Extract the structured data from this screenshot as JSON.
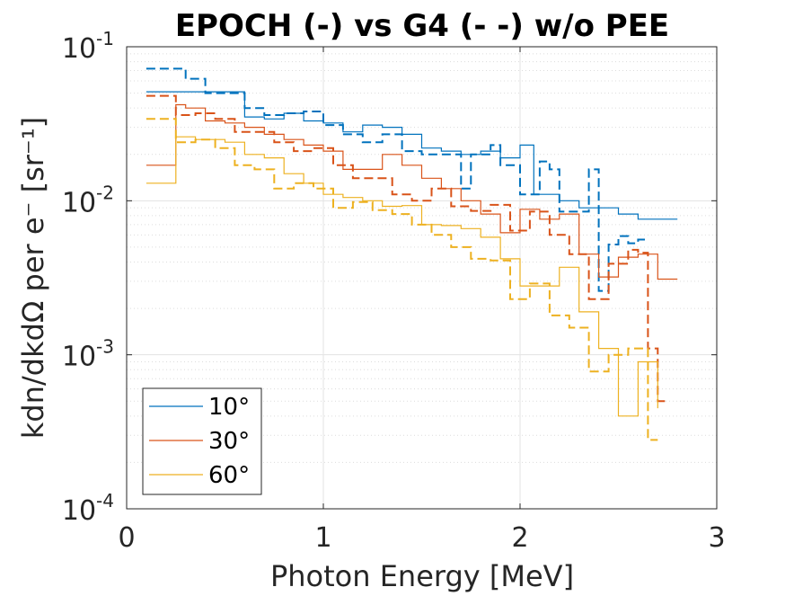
{
  "chart_data": {
    "type": "line",
    "title": "EPOCH (-) vs G4 (- -) w/o PEE",
    "xlabel": "Photon Energy [MeV]",
    "ylabel": "kdn/dkdΩ per e⁻ [sr⁻¹]",
    "xlim": [
      0,
      3
    ],
    "ylim": [
      0.0001,
      0.1
    ],
    "yscale": "log",
    "grid": true,
    "x_ticks": [
      "0",
      "1",
      "2",
      "3"
    ],
    "y_ticks": [
      {
        "base": "10",
        "exp": "-4"
      },
      {
        "base": "10",
        "exp": "-3"
      },
      {
        "base": "10",
        "exp": "-2"
      },
      {
        "base": "10",
        "exp": "-1"
      }
    ],
    "legend_position": "bottom-left",
    "series": [
      {
        "name": "10°",
        "source": "EPOCH",
        "style": "solid",
        "color": "#0072BD",
        "edges": [
          0.1,
          0.6,
          0.7,
          0.8,
          0.9,
          1.0,
          1.1,
          1.2,
          1.3,
          1.4,
          1.5,
          1.6,
          1.7,
          1.8,
          1.9,
          2.0,
          2.07,
          2.2,
          2.3,
          2.4,
          2.5,
          2.6,
          2.7,
          2.8
        ],
        "values": [
          0.051,
          0.035,
          0.034,
          0.037,
          0.033,
          0.032,
          0.028,
          0.031,
          0.03,
          0.027,
          0.022,
          0.021,
          0.02,
          0.021,
          0.019,
          0.023,
          0.011,
          0.01,
          0.009,
          0.009,
          0.0082,
          0.0076,
          0.0076
        ]
      },
      {
        "name": "",
        "source": "G4",
        "style": "dashed",
        "color": "#0072BD",
        "edges": [
          0.1,
          0.3,
          0.4,
          0.6,
          0.7,
          0.8,
          0.9,
          1.0,
          1.1,
          1.2,
          1.3,
          1.4,
          1.5,
          1.6,
          1.7,
          1.75,
          1.85,
          1.9,
          2.0,
          2.1,
          2.15,
          2.2,
          2.3,
          2.35,
          2.4,
          2.45,
          2.5,
          2.55,
          2.6,
          2.65
        ],
        "values": [
          0.072,
          0.062,
          0.05,
          0.04,
          0.036,
          0.037,
          0.038,
          0.031,
          0.027,
          0.024,
          0.027,
          0.021,
          0.02,
          0.02,
          0.012,
          0.02,
          0.023,
          0.017,
          0.011,
          0.018,
          0.016,
          0.0085,
          0.0085,
          0.016,
          0.0026,
          0.0052,
          0.0059,
          0.0053,
          0.0056,
          0.0056
        ]
      },
      {
        "name": "30°",
        "source": "EPOCH",
        "style": "solid",
        "color": "#D95319",
        "edges": [
          0.1,
          0.25,
          0.3,
          0.4,
          0.5,
          0.6,
          0.7,
          0.8,
          0.9,
          1.0,
          1.1,
          1.2,
          1.3,
          1.4,
          1.5,
          1.6,
          1.7,
          1.8,
          1.9,
          2.0,
          2.1,
          2.2,
          2.3,
          2.4,
          2.5,
          2.6,
          2.7,
          2.8
        ],
        "values": [
          0.017,
          0.042,
          0.04,
          0.033,
          0.032,
          0.03,
          0.027,
          0.025,
          0.023,
          0.021,
          0.016,
          0.016,
          0.02,
          0.017,
          0.014,
          0.012,
          0.01,
          0.0082,
          0.0062,
          0.0088,
          0.0076,
          0.0082,
          0.0045,
          0.0032,
          0.0043,
          0.0045,
          0.0031,
          0.0031
        ]
      },
      {
        "name": "",
        "source": "G4",
        "style": "dashed",
        "color": "#D95319",
        "edges": [
          0.1,
          0.25,
          0.35,
          0.45,
          0.55,
          0.65,
          0.75,
          0.85,
          0.95,
          1.05,
          1.15,
          1.25,
          1.35,
          1.45,
          1.55,
          1.65,
          1.75,
          1.85,
          1.95,
          2.05,
          2.15,
          2.25,
          2.35,
          2.45,
          2.55,
          2.6,
          2.65,
          2.7,
          2.75
        ],
        "values": [
          0.048,
          0.036,
          0.037,
          0.034,
          0.028,
          0.028,
          0.024,
          0.021,
          0.022,
          0.017,
          0.014,
          0.014,
          0.011,
          0.01,
          0.012,
          0.0092,
          0.0086,
          0.0094,
          0.0064,
          0.0085,
          0.006,
          0.0045,
          0.0023,
          0.0039,
          0.0048,
          0.0046,
          0.0011,
          0.0005,
          0.0005
        ]
      },
      {
        "name": "60°",
        "source": "EPOCH",
        "style": "solid",
        "color": "#EDB120",
        "edges": [
          0.1,
          0.25,
          0.35,
          0.5,
          0.6,
          0.7,
          0.8,
          0.9,
          1.0,
          1.1,
          1.2,
          1.3,
          1.4,
          1.5,
          1.6,
          1.7,
          1.8,
          1.9,
          2.0,
          2.1,
          2.2,
          2.3,
          2.4,
          2.5,
          2.6,
          2.7
        ],
        "values": [
          0.013,
          0.026,
          0.025,
          0.024,
          0.02,
          0.019,
          0.015,
          0.013,
          0.011,
          0.0105,
          0.01,
          0.0092,
          0.0093,
          0.007,
          0.0069,
          0.0066,
          0.0058,
          0.0042,
          0.0028,
          0.0028,
          0.0037,
          0.0019,
          0.0011,
          0.0004,
          0.0009,
          0.00045
        ]
      },
      {
        "name": "",
        "source": "G4",
        "style": "dashed",
        "color": "#EDB120",
        "edges": [
          0.1,
          0.25,
          0.35,
          0.45,
          0.55,
          0.65,
          0.75,
          0.85,
          0.95,
          1.05,
          1.15,
          1.25,
          1.35,
          1.45,
          1.55,
          1.65,
          1.75,
          1.85,
          1.95,
          2.05,
          2.15,
          2.25,
          2.35,
          2.45,
          2.55,
          2.65,
          2.7
        ],
        "values": [
          0.034,
          0.024,
          0.025,
          0.022,
          0.017,
          0.016,
          0.012,
          0.013,
          0.012,
          0.009,
          0.0098,
          0.0087,
          0.0082,
          0.007,
          0.006,
          0.005,
          0.0042,
          0.0041,
          0.0023,
          0.0029,
          0.0018,
          0.0015,
          0.00078,
          0.001,
          0.0011,
          0.00028,
          0.00028
        ]
      }
    ]
  }
}
